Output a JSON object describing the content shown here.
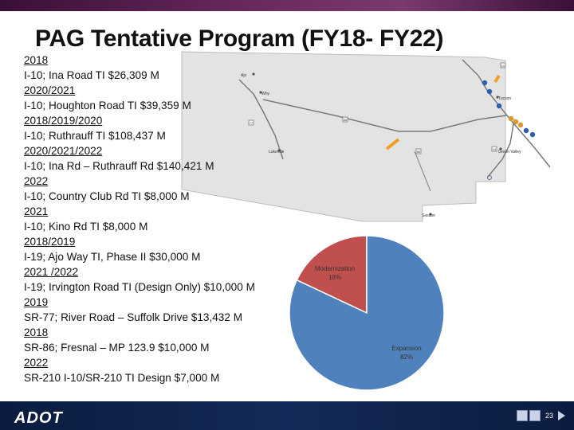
{
  "title": "PAG Tentative Program (FY18- FY22)",
  "projects": [
    {
      "year": "2018",
      "desc": "I-10;   Ina Road TI $26,309 M"
    },
    {
      "year": "2020/2021",
      "desc": "I-10;   Houghton Road TI $39,359 M"
    },
    {
      "year": "2018/2019/2020",
      "desc": "I-10;   Ruthrauff TI $108,437 M"
    },
    {
      "year": "2020/2021/2022",
      "desc": "I-10; Ina Rd – Ruthrauff Rd $140,421 M"
    },
    {
      "year": "2022",
      "desc": "I-10;   Country Club Rd TI  $8,000 M"
    },
    {
      "year": "2021",
      "desc": "I-10;   Kino Rd TI $8,000 M"
    },
    {
      "year": "2018/2019",
      "desc": "I-19;   Ajo Way TI, Phase II  $30,000 M"
    },
    {
      "year": "2021 /2022",
      "desc": "I-19;   Irvington Road TI  (Design Only) $10,000 M"
    },
    {
      "year": "2019",
      "desc": "SR-77; River Road – Suffolk Drive $13,432 M"
    },
    {
      "year": "2018",
      "desc": "SR-86;   Fresnal – MP 123.9 $10,000 M"
    },
    {
      "year": "2022",
      "desc": "SR-210 I-10/SR-210 TI Design $7,000 M"
    }
  ],
  "map": {
    "labels": {
      "ajo": "Ajo",
      "why": "Why",
      "tucson": "Tucson",
      "green_valley": "Green Valley",
      "lukeville": "Lukeville",
      "sasabe": "Sasabe"
    },
    "shields": {
      "s1": "77",
      "s2": "86",
      "s3": "86",
      "s4": "19",
      "s5": "10"
    }
  },
  "pie": {
    "slices": [
      {
        "name": "Modernization",
        "percent_label": "18%",
        "value": 18,
        "color": "#c0504d"
      },
      {
        "name": "Expansion",
        "percent_label": "82%",
        "value": 82,
        "color": "#4f81bd"
      }
    ]
  },
  "footer": {
    "logo": "ADOT",
    "page_number": "23"
  }
}
